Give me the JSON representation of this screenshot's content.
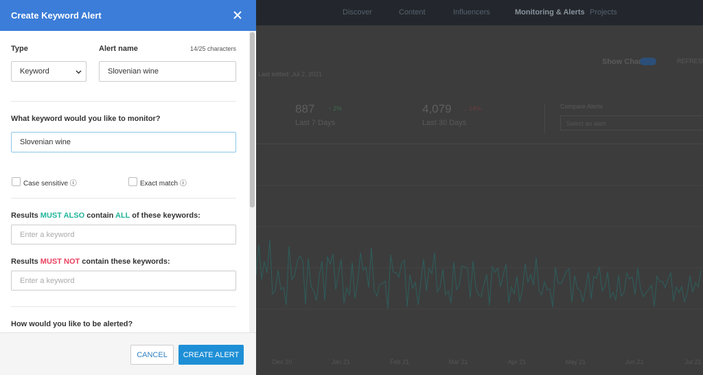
{
  "nav": {
    "items": [
      "Discover",
      "Content",
      "Influencers",
      "Monitoring & Alerts",
      "Projects"
    ]
  },
  "background": {
    "show_chart": "Show Chart",
    "refresh": "REFRESH",
    "last_edited": "Last edited: Jul 2, 2021",
    "stats": [
      {
        "value": "887",
        "change": "2%",
        "period": "Last 7 Days"
      },
      {
        "value": "4,079",
        "change": "14%",
        "period": "Last 30 Days"
      }
    ],
    "compare": {
      "label": "Compare Alerts",
      "placeholder": "Select an alert"
    },
    "x_labels": [
      "Dec 20",
      "Jan 21",
      "Feb 21",
      "Mar 21",
      "Apr 21",
      "May 21",
      "Jun 21",
      "Jul 21"
    ]
  },
  "panel": {
    "title": "Create Keyword Alert",
    "type_label": "Type",
    "type_value": "Keyword",
    "name_label": "Alert name",
    "name_count": "14/25 characters",
    "name_value": "Slovenian wine",
    "keyword_question": "What keyword would you like to monitor?",
    "keyword_value": "Slovenian wine",
    "case_sensitive": "Case sensitive",
    "exact_match": "Exact match",
    "must_also": {
      "parts": [
        "Results ",
        "MUST ALSO",
        " contain ",
        "ALL",
        " of these keywords:"
      ],
      "placeholder": "Enter a keyword"
    },
    "must_not": {
      "parts": [
        "Results ",
        "MUST NOT",
        " contain these keywords:"
      ],
      "placeholder": "Enter a keyword"
    },
    "alert_question": "How would you like to be alerted?",
    "cancel": "CANCEL",
    "create": "CREATE ALERT"
  }
}
